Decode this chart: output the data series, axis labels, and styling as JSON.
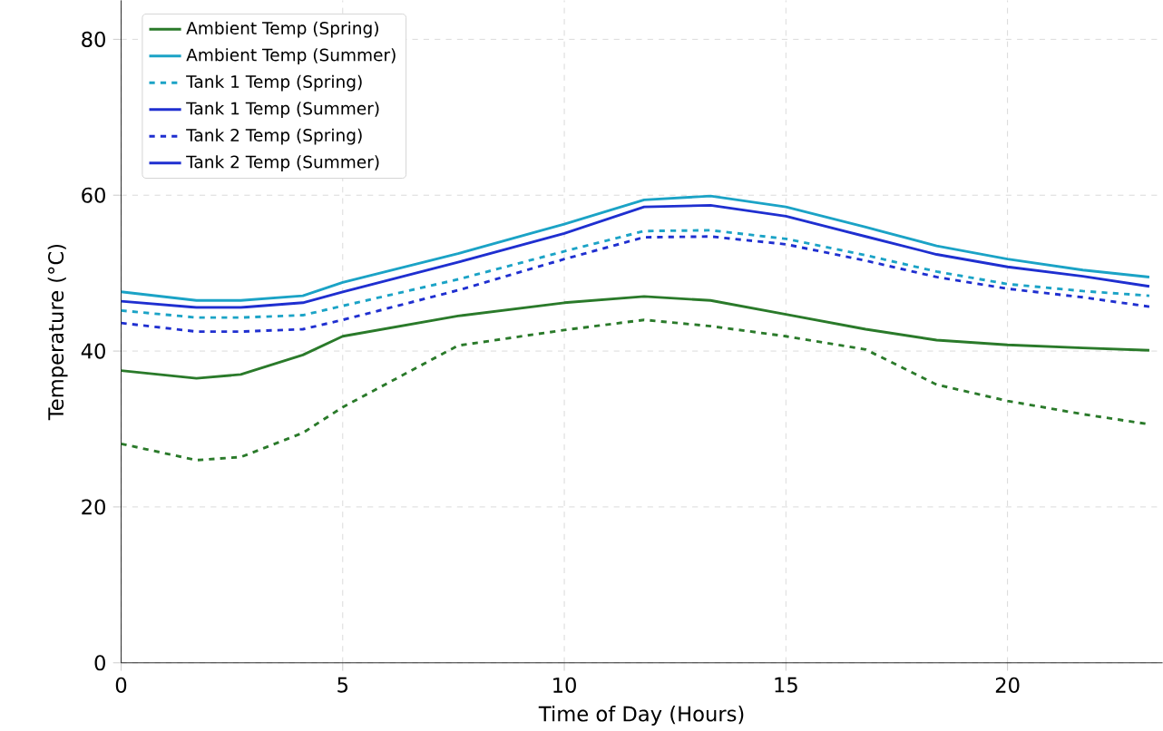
{
  "chart_data": {
    "type": "line",
    "xlabel": "Time of Day (Hours)",
    "ylabel": "Temperature (°C)",
    "x": [
      0,
      1.7,
      2.7,
      4.1,
      5,
      7.6,
      10,
      11.8,
      13.3,
      15,
      16.8,
      18.4,
      20,
      21.7,
      23.2
    ],
    "xlim": [
      0,
      23.5
    ],
    "xticks": [
      0,
      5,
      10,
      15,
      20
    ],
    "ylim": [
      0,
      85
    ],
    "yticks": [
      0,
      20,
      40,
      60,
      80
    ],
    "grid": true,
    "legend": "top left",
    "marker": "none",
    "series": [
      {
        "name": "Ambient Temp (Spring)",
        "color": "#2a7a2a",
        "line_style": "solid",
        "values": [
          37.5,
          36.5,
          37,
          39.5,
          41.9,
          44.5,
          46.2,
          47,
          46.5,
          44.7,
          42.8,
          41.4,
          40.8,
          40.4,
          40.1
        ]
      },
      {
        "name": "Ambient Temp (Summer)",
        "color": "#1ba3c6",
        "line_style": "solid",
        "values": [
          47.6,
          46.5,
          46.5,
          47.1,
          48.8,
          52.5,
          56.3,
          59.4,
          59.9,
          58.5,
          55.9,
          53.5,
          51.8,
          50.4,
          49.5
        ]
      },
      {
        "name": "Tank 1 Temp (Spring)",
        "color": "#1ba3c6",
        "line_style": "dashed",
        "values": [
          45.2,
          44.3,
          44.3,
          44.6,
          45.8,
          49.2,
          52.8,
          55.4,
          55.5,
          54.4,
          52.3,
          50.2,
          48.6,
          47.7,
          47.1
        ]
      },
      {
        "name": "Tank 1 Temp (Summer)",
        "color": "#1f2fd0",
        "line_style": "solid",
        "values": [
          46.4,
          45.6,
          45.6,
          46.2,
          47.6,
          51.4,
          55.1,
          58.5,
          58.7,
          57.3,
          54.7,
          52.4,
          50.8,
          49.6,
          48.3
        ]
      },
      {
        "name": "Tank 2 Temp (Spring)",
        "color": "#1f2fd0",
        "line_style": "dashed",
        "values": [
          43.6,
          42.5,
          42.5,
          42.8,
          44.0,
          47.8,
          51.8,
          54.6,
          54.7,
          53.7,
          51.6,
          49.5,
          48.0,
          46.9,
          45.7
        ]
      },
      {
        "name": "Tank 2 Temp (Summer)",
        "color": "#1f2fd0",
        "line_style": "solid",
        "values": [
          null,
          null,
          null,
          null,
          null,
          null,
          null,
          null,
          null,
          null,
          null,
          null,
          null,
          null,
          null
        ]
      },
      {
        "color": "#2a7a2a",
        "line_style": "dashed",
        "values": [
          28.1,
          26,
          26.4,
          29.5,
          32.8,
          40.7,
          42.7,
          44,
          43.2,
          41.9,
          40.2,
          35.7,
          33.6,
          31.9,
          30.6
        ]
      }
    ]
  }
}
